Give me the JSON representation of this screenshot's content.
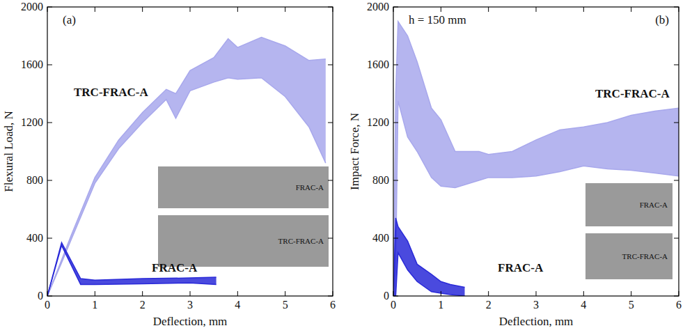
{
  "chart_data": [
    {
      "type": "line",
      "annotations": [
        "(a)"
      ],
      "x_label": "Deflection, mm",
      "y_label": "Flexural Load, N",
      "xlim": [
        0,
        6
      ],
      "xticks": [
        0,
        1,
        2,
        3,
        4,
        5,
        6
      ],
      "ylim": [
        0,
        2000
      ],
      "yticks": [
        0,
        400,
        800,
        1200,
        1600,
        2000
      ],
      "insets": [
        "FRAC-A",
        "TRC-FRAC-A"
      ],
      "series": [
        {
          "name": "TRC-FRAC-A",
          "color": "#a8a8ec",
          "x": [
            0,
            0.3,
            0.5,
            1,
            1.5,
            2,
            2.5,
            2.7,
            3,
            3.5,
            3.8,
            4,
            4.5,
            5,
            5.5,
            5.85
          ],
          "values": [
            0,
            250,
            420,
            820,
            1080,
            1270,
            1430,
            1400,
            1560,
            1650,
            1780,
            1720,
            1790,
            1730,
            1630,
            1640
          ],
          "lower": [
            0,
            230,
            390,
            780,
            1020,
            1200,
            1360,
            1230,
            1420,
            1480,
            1510,
            1500,
            1510,
            1380,
            1170,
            920
          ]
        },
        {
          "name": "FRAC-A",
          "color": "#2a2ad8",
          "x": [
            0,
            0.3,
            0.7,
            1,
            2,
            3,
            3.55
          ],
          "values": [
            0,
            370,
            120,
            110,
            120,
            125,
            130
          ],
          "lower": [
            0,
            350,
            80,
            80,
            85,
            90,
            80
          ]
        }
      ]
    },
    {
      "type": "line",
      "annotations": [
        "(b)",
        "h = 150 mm"
      ],
      "x_label": "Deflection, mm",
      "y_label": "Impact Force, N",
      "xlim": [
        0,
        6
      ],
      "xticks": [
        0,
        1,
        2,
        3,
        4,
        5,
        6
      ],
      "ylim": [
        0,
        2000
      ],
      "yticks": [
        0,
        400,
        800,
        1200,
        1600,
        2000
      ],
      "insets": [
        "FRAC-A",
        "TRC-FRAC-A"
      ],
      "series": [
        {
          "name": "TRC-FRAC-A",
          "color": "#a8a8ec",
          "x": [
            0,
            0.05,
            0.1,
            0.3,
            0.5,
            0.8,
            1,
            1.3,
            1.8,
            2,
            2.5,
            3,
            3.5,
            4,
            4.5,
            5,
            5.5,
            6
          ],
          "values": [
            0,
            1400,
            1900,
            1800,
            1620,
            1300,
            1220,
            1000,
            1000,
            980,
            1000,
            1080,
            1150,
            1170,
            1200,
            1250,
            1280,
            1300
          ],
          "lower": [
            0,
            200,
            1350,
            1100,
            1000,
            820,
            760,
            750,
            800,
            820,
            820,
            830,
            860,
            900,
            880,
            870,
            850,
            830
          ]
        },
        {
          "name": "FRAC-A",
          "color": "#2a2ad8",
          "x": [
            0,
            0.05,
            0.1,
            0.3,
            0.5,
            0.8,
            1,
            1.2,
            1.5
          ],
          "values": [
            0,
            540,
            480,
            380,
            220,
            150,
            100,
            80,
            60
          ],
          "lower": [
            0,
            0,
            300,
            180,
            100,
            30,
            20,
            10,
            0
          ]
        }
      ]
    }
  ]
}
